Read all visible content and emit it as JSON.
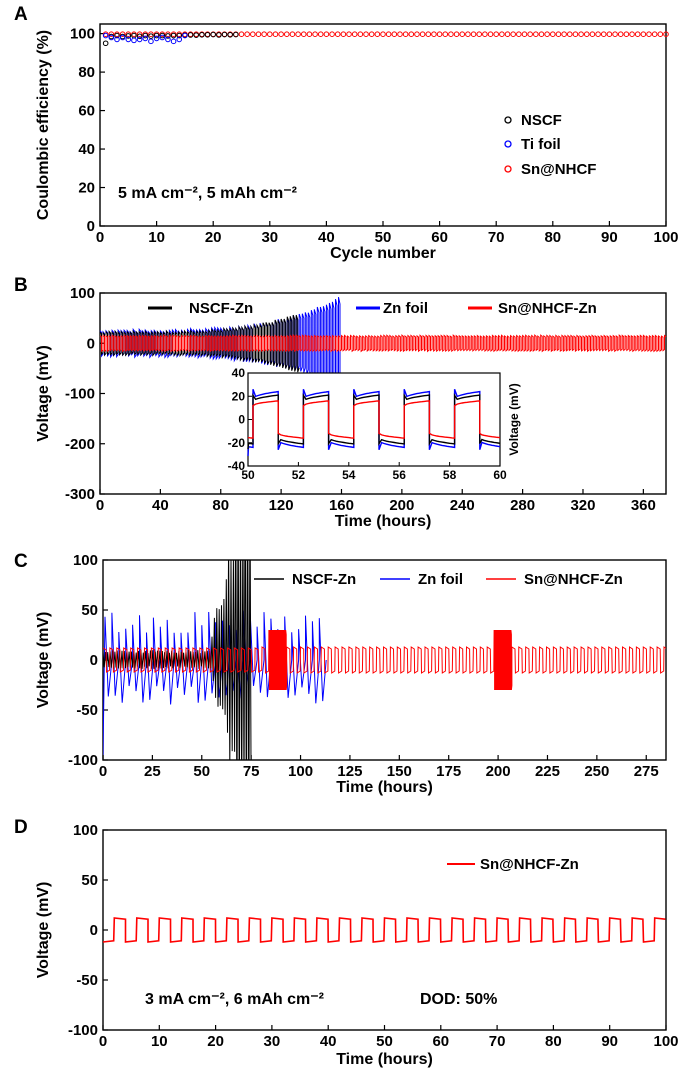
{
  "chart_data": [
    {
      "panel": "A",
      "type": "scatter",
      "xlabel": "Cycle number",
      "ylabel": "Coulombic efficiency (%)",
      "xlim": [
        0,
        100
      ],
      "ylim": [
        0,
        105
      ],
      "xticks": [
        0,
        10,
        20,
        30,
        40,
        50,
        60,
        70,
        80,
        90,
        100
      ],
      "yticks": [
        0,
        20,
        40,
        60,
        80,
        100
      ],
      "annotation": "5 mA cm⁻², 5 mAh cm⁻²",
      "legend_position": "bottom-right",
      "series": [
        {
          "name": "NSCF",
          "color": "#000000",
          "marker": "open-circle",
          "x": [
            1,
            2,
            3,
            4,
            5,
            6,
            7,
            8,
            9,
            10,
            11,
            12,
            13,
            14,
            15,
            16,
            17,
            18,
            19,
            20,
            21,
            22,
            23,
            24
          ],
          "y": [
            95,
            98.5,
            99,
            98.5,
            98.8,
            99,
            98.6,
            99,
            98.7,
            99,
            99,
            98.8,
            99,
            99,
            99.2,
            99.3,
            99.2,
            99.4,
            99.4,
            99.5,
            99.3,
            99.5,
            99.4,
            99.5
          ]
        },
        {
          "name": "Ti foil",
          "color": "#0000ff",
          "marker": "open-circle",
          "x": [
            1,
            2,
            3,
            4,
            5,
            6,
            7,
            8,
            9,
            10,
            11,
            12,
            13,
            14,
            15
          ],
          "y": [
            99,
            98,
            97,
            98,
            97,
            96.5,
            97,
            97.5,
            96,
            97.5,
            98,
            97,
            96,
            97,
            99
          ]
        },
        {
          "name": "Sn@NHCF",
          "color": "#ff0000",
          "marker": "open-circle",
          "x_range": [
            1,
            100
          ],
          "y_value": 99.7
        }
      ]
    },
    {
      "panel": "B",
      "type": "line",
      "xlabel": "Time (hours)",
      "ylabel": "Voltage (mV)",
      "xlim": [
        0,
        375
      ],
      "ylim": [
        -300,
        100
      ],
      "xticks": [
        0,
        40,
        80,
        120,
        160,
        200,
        240,
        280,
        320,
        360
      ],
      "yticks": [
        -300,
        -200,
        -100,
        0,
        100
      ],
      "legend_position": "top",
      "series": [
        {
          "name": "NSCF-Zn",
          "color": "#000000",
          "duration_h": 132,
          "amplitude_mV": [
            22,
            60
          ]
        },
        {
          "name": "Zn foil",
          "color": "#0000ff",
          "duration_h": 160,
          "amplitude_mV": [
            25,
            95
          ]
        },
        {
          "name": "Sn@NHCF-Zn",
          "color": "#ff0000",
          "duration_h": 375,
          "amplitude_mV": [
            15,
            15
          ]
        }
      ],
      "inset": {
        "ylabel": "Voltage (mV)",
        "xlim": [
          50,
          60
        ],
        "ylim": [
          -40,
          40
        ],
        "xticks": [
          50,
          52,
          54,
          56,
          58,
          60
        ],
        "yticks": [
          -40,
          -20,
          0,
          20,
          40
        ]
      }
    },
    {
      "panel": "C",
      "type": "line",
      "xlabel": "Time (hours)",
      "ylabel": "Voltage (mV)",
      "xlim": [
        0,
        285
      ],
      "ylim": [
        -100,
        100
      ],
      "xticks": [
        0,
        25,
        50,
        75,
        100,
        125,
        150,
        175,
        200,
        225,
        250,
        275
      ],
      "yticks": [
        -100,
        -50,
        0,
        50,
        100
      ],
      "legend_position": "top-right",
      "series": [
        {
          "name": "NSCF-Zn",
          "color": "#000000",
          "duration_h": 75
        },
        {
          "name": "Zn foil",
          "color": "#0000ff",
          "duration_h": 113
        },
        {
          "name": "Sn@NHCF-Zn",
          "color": "#ff0000",
          "duration_h": 285
        }
      ]
    },
    {
      "panel": "D",
      "type": "line",
      "xlabel": "Time (hours)",
      "ylabel": "Voltage (mV)",
      "xlim": [
        0,
        100
      ],
      "ylim": [
        -100,
        100
      ],
      "xticks": [
        0,
        10,
        20,
        30,
        40,
        50,
        60,
        70,
        80,
        90,
        100
      ],
      "yticks": [
        -100,
        -50,
        0,
        50,
        100
      ],
      "annotation": "3 mA cm⁻², 6 mAh cm⁻²",
      "annotation2": "DOD: 50%",
      "legend_position": "top-right",
      "series": [
        {
          "name": "Sn@NHCF-Zn",
          "color": "#ff0000",
          "period_h": 4,
          "amplitude_mV": 12
        }
      ]
    }
  ]
}
